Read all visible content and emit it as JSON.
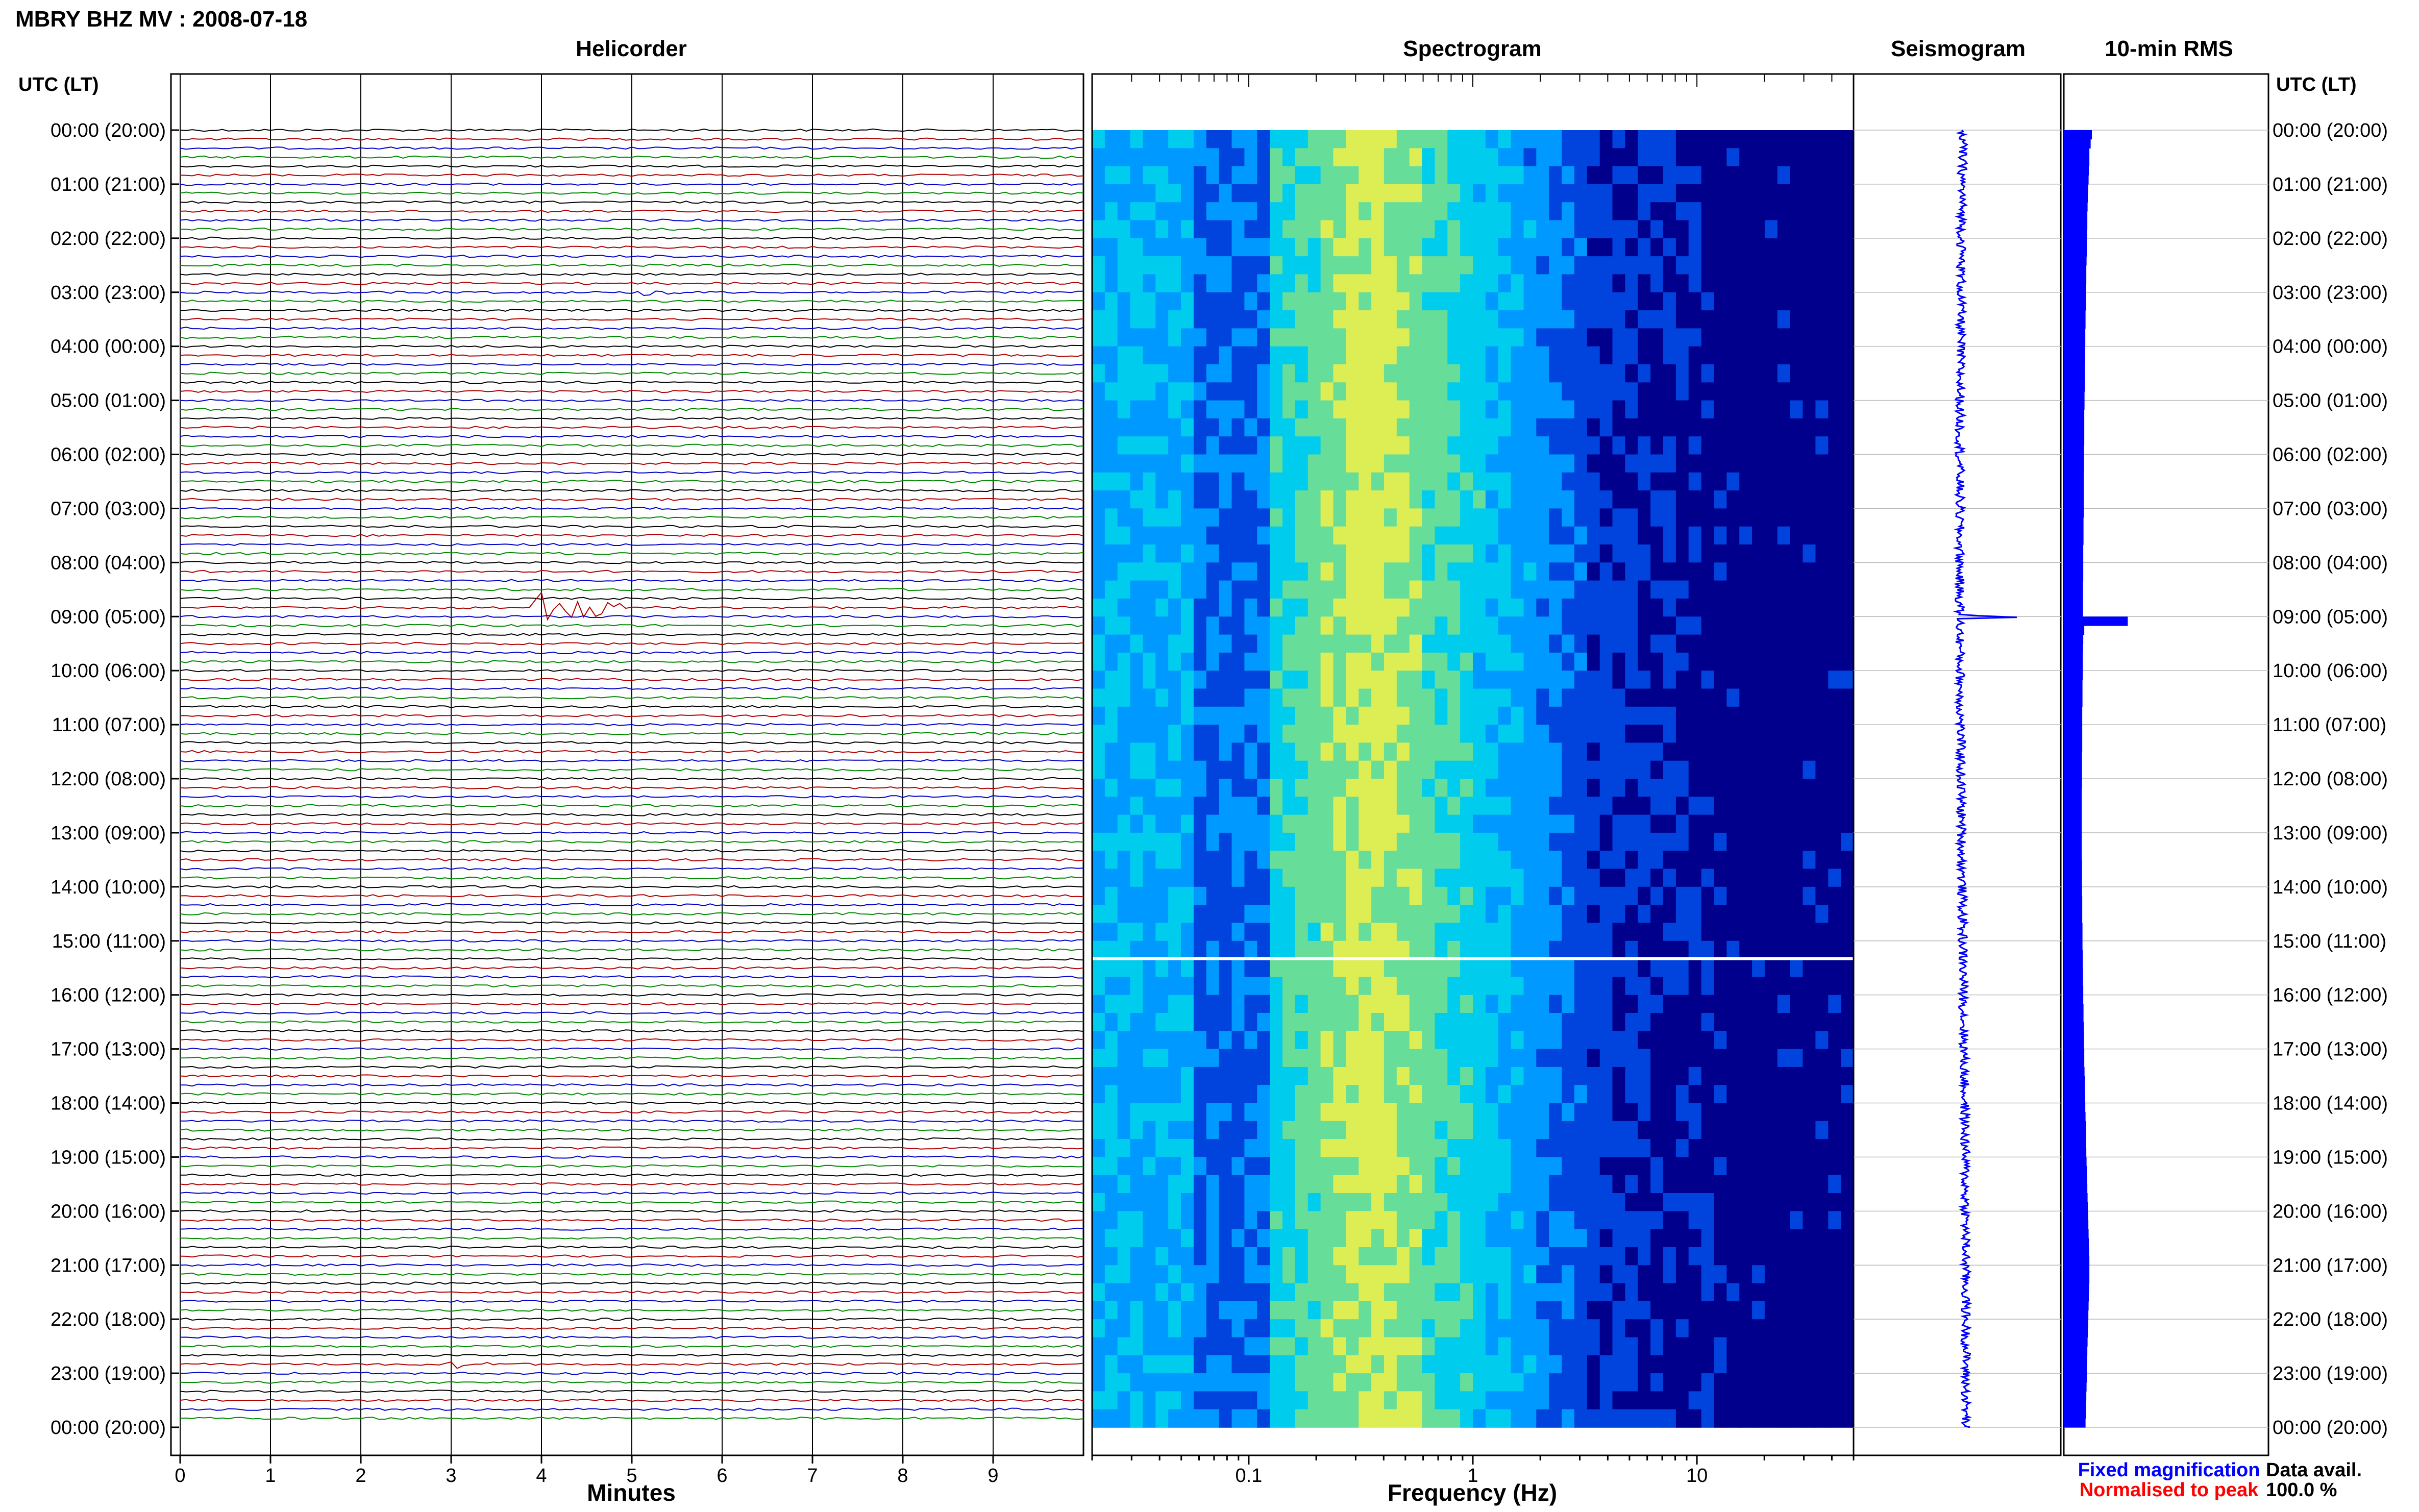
{
  "header": {
    "title": "MBRY BHZ MV : 2008-07-18",
    "panel_titles": [
      "Helicorder",
      "Spectrogram",
      "Seismogram",
      "10-min RMS"
    ],
    "left_axis_caption": "UTC (LT)",
    "right_axis_caption": "UTC (LT)"
  },
  "footer": {
    "helicorder_xlabel": "Minutes",
    "spectrogram_xlabel": "Frequency (Hz)",
    "legend_fixed": "Fixed magnification",
    "legend_normalised": "Normalised to peak",
    "data_avail_label": "Data avail.",
    "data_avail_value": "100.0 %"
  },
  "colors": {
    "trace_cycle": [
      "#000000",
      "#b00000",
      "#0000c8",
      "#008800"
    ],
    "legend_fixed": "#0000ff",
    "legend_normalised": "#ff0000",
    "rms_bar": "#0000ff",
    "seismogram": "#0000ff",
    "spectrogram_scale": [
      "#00008c",
      "#0044dd",
      "#0099ff",
      "#00ccee",
      "#66dd99",
      "#ddee55"
    ]
  },
  "chart_data": [
    {
      "panel": "Helicorder",
      "type": "line",
      "xlabel": "Minutes",
      "xlim": [
        0,
        10
      ],
      "xticks": [
        0,
        1,
        2,
        3,
        4,
        5,
        6,
        7,
        8,
        9
      ],
      "xtick_labels": [
        "0",
        "1",
        "2",
        "3",
        "4",
        "5",
        "6",
        "7",
        "8",
        "9"
      ],
      "y_time_labels": [
        "00:00 (20:00)",
        "01:00 (21:00)",
        "02:00 (22:00)",
        "03:00 (23:00)",
        "04:00 (00:00)",
        "05:00 (01:00)",
        "06:00 (02:00)",
        "07:00 (03:00)",
        "08:00 (04:00)",
        "09:00 (05:00)",
        "10:00 (06:00)",
        "11:00 (07:00)",
        "12:00 (08:00)",
        "13:00 (09:00)",
        "14:00 (10:00)",
        "15:00 (11:00)",
        "16:00 (12:00)",
        "17:00 (13:00)",
        "18:00 (14:00)",
        "19:00 (15:00)",
        "20:00 (16:00)",
        "21:00 (17:00)",
        "22:00 (18:00)",
        "23:00 (19:00)",
        "00:00 (20:00)"
      ],
      "lines_per_hour": 6,
      "hours": 24,
      "events": [
        {
          "hour": 8,
          "line": 5,
          "start_min": 3.9,
          "duration_min": 1.0,
          "amplitude": "large"
        },
        {
          "hour": 3,
          "line": 0,
          "start_min": 5.1,
          "duration_min": 0.5,
          "amplitude": "small"
        },
        {
          "hour": 22,
          "line": 5,
          "start_min": 3.0,
          "duration_min": 0.5,
          "amplitude": "small"
        }
      ]
    },
    {
      "panel": "Spectrogram",
      "type": "heatmap",
      "xlabel": "Frequency (Hz)",
      "xscale": "log",
      "xlim": [
        0.02,
        50
      ],
      "xticks": [
        0.1,
        1,
        10
      ],
      "xtick_labels": [
        "0.1",
        "1",
        "10"
      ],
      "peak_band_hz": [
        0.25,
        0.5
      ],
      "high_freq_rolloff_hz": 15,
      "gap_time_hours": 15.3
    },
    {
      "panel": "Seismogram",
      "type": "line",
      "hours": 24,
      "spike_hour": 9.0
    },
    {
      "panel": "10-min RMS",
      "type": "bar",
      "orientation": "horizontal",
      "hours": 24,
      "values": [
        1.1,
        1.05,
        1.0,
        1.0,
        0.98,
        0.97,
        0.95,
        0.94,
        0.93,
        0.92,
        0.92,
        0.91,
        0.9,
        0.9,
        0.89,
        0.88,
        0.88,
        0.87,
        0.86,
        0.86,
        0.85,
        0.85,
        0.84,
        0.84,
        0.83,
        0.83,
        0.82,
        0.82,
        0.82,
        0.81,
        0.81,
        0.8,
        0.8,
        0.8,
        0.8,
        0.79,
        0.79,
        0.79,
        0.78,
        0.78,
        0.78,
        0.78,
        0.78,
        0.77,
        0.77,
        0.77,
        0.76,
        0.76,
        0.76,
        0.76,
        0.75,
        0.75,
        0.75,
        0.75,
        2.5,
        0.8,
        0.76,
        0.75,
        0.74,
        0.74,
        0.74,
        0.73,
        0.73,
        0.73,
        0.72,
        0.72,
        0.72,
        0.72,
        0.72,
        0.71,
        0.71,
        0.71,
        0.71,
        0.7,
        0.7,
        0.7,
        0.7,
        0.7,
        0.7,
        0.7,
        0.7,
        0.71,
        0.71,
        0.71,
        0.71,
        0.72,
        0.72,
        0.72,
        0.73,
        0.73,
        0.73,
        0.74,
        0.74,
        0.75,
        0.75,
        0.76,
        0.76,
        0.77,
        0.77,
        0.78,
        0.79,
        0.79,
        0.8,
        0.8,
        0.81,
        0.82,
        0.82,
        0.83,
        0.84,
        0.85,
        0.86,
        0.87,
        0.87,
        0.88,
        0.89,
        0.9,
        0.91,
        0.92,
        0.93,
        0.94,
        0.95,
        0.96,
        0.97,
        0.98,
        0.99,
        1.0,
        1.0,
        1.0,
        0.99,
        0.98,
        0.97,
        0.96,
        0.95,
        0.94,
        0.93,
        0.92,
        0.91,
        0.9,
        0.9,
        0.89,
        0.88,
        0.87,
        0.86,
        0.85
      ]
    }
  ]
}
